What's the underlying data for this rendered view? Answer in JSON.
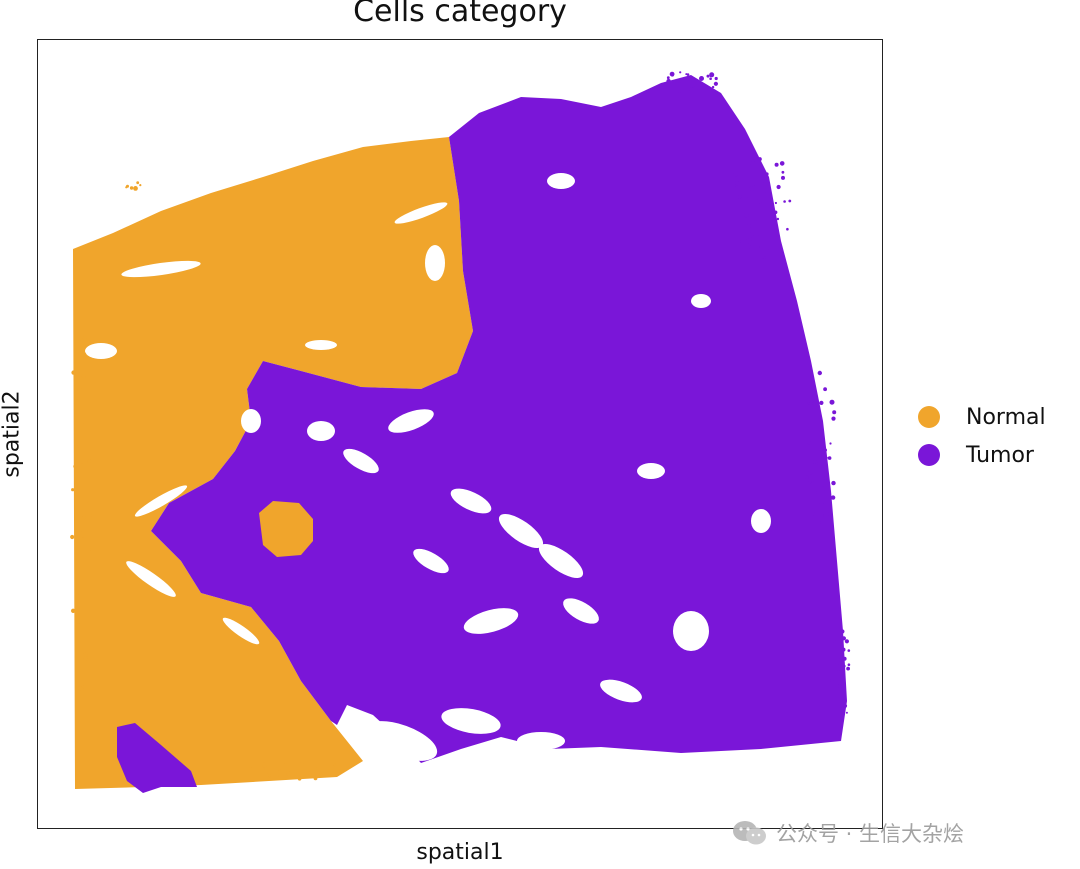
{
  "chart_data": {
    "type": "scatter",
    "title": "Cells category",
    "xlabel": "spatial1",
    "ylabel": "spatial2",
    "grid": false,
    "ticks": "none",
    "legend_position": "right",
    "series": [
      {
        "name": "Normal",
        "color": "#f0a52c"
      },
      {
        "name": "Tumor",
        "color": "#7a16d8"
      }
    ]
  },
  "watermark": {
    "text": "公众号 · 生信大杂烩",
    "icon": "wechat-icon"
  }
}
